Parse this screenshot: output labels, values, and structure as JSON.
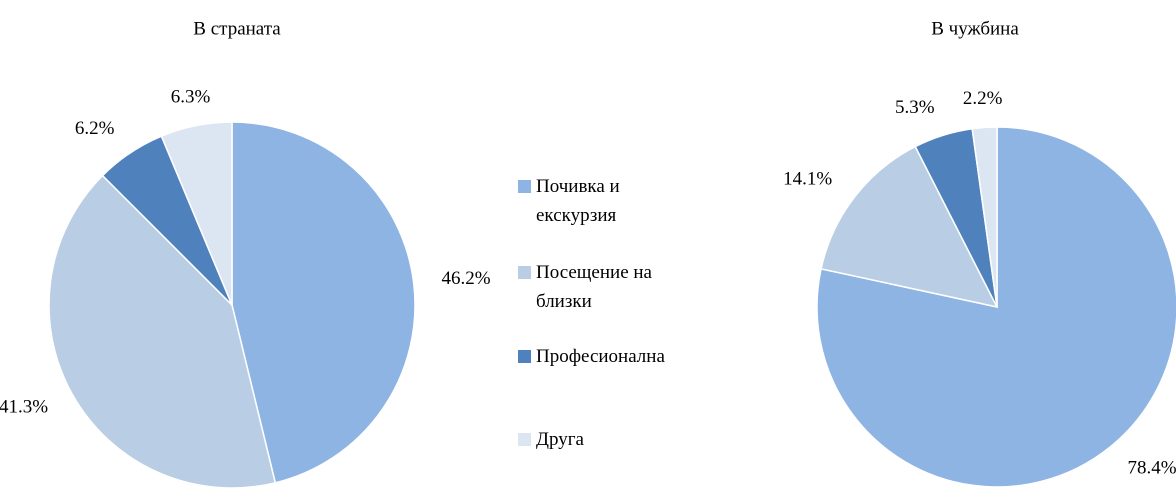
{
  "chart_data": [
    {
      "type": "pie",
      "title": "В страната",
      "categories": [
        "Почивка и екскурзия",
        "Посещение на близки",
        "Професионална",
        "Друга"
      ],
      "values": [
        46.2,
        41.3,
        6.2,
        6.3
      ],
      "value_labels": [
        "46.2%",
        "41.3%",
        "6.2%",
        "6.3%"
      ],
      "colors": [
        "#8eb4e3",
        "#b9cde5",
        "#4f81bd",
        "#dce6f2"
      ]
    },
    {
      "type": "pie",
      "title": "В чужбина",
      "values": [
        78.4,
        14.1,
        5.3,
        2.2
      ],
      "value_labels": [
        "78.4%",
        "14.1%",
        "5.3%",
        "2.2%"
      ],
      "colors": [
        "#8eb4e3",
        "#b9cde5",
        "#4f81bd",
        "#dce6f2"
      ]
    }
  ]
}
